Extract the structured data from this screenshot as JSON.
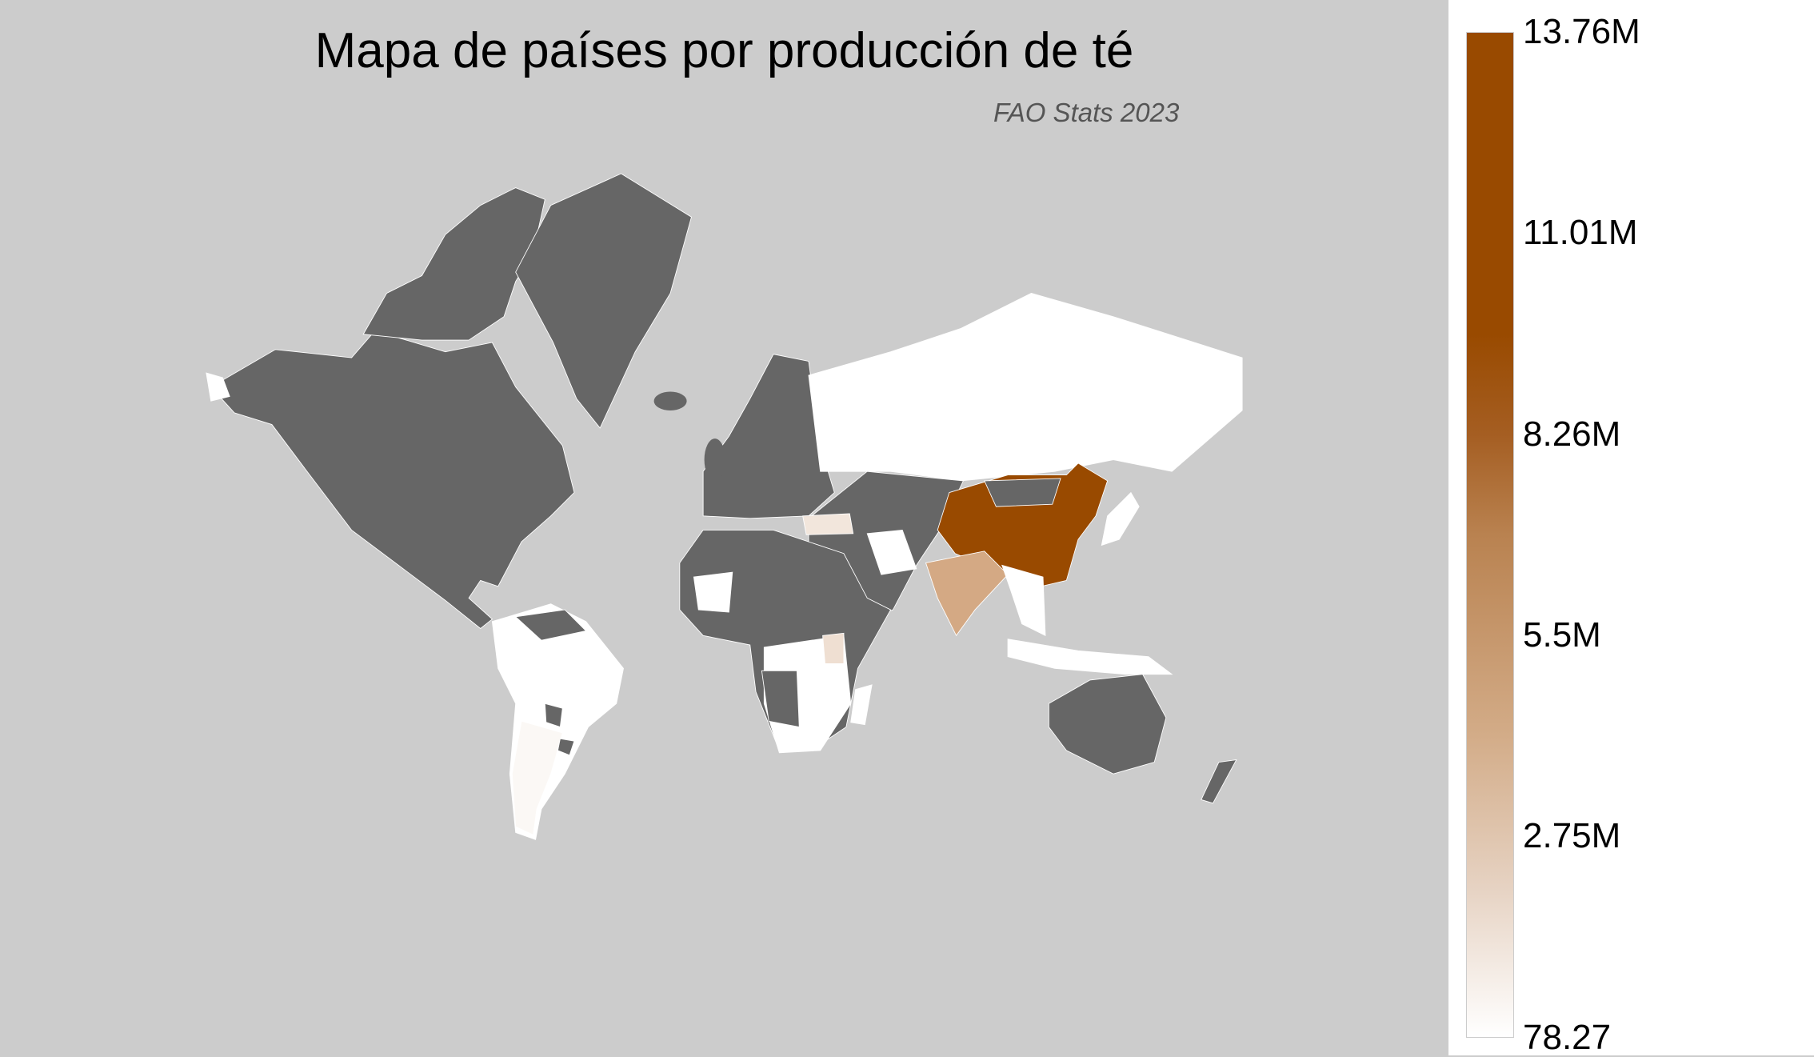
{
  "title": "Mapa de países por producción de té",
  "subtitle": "FAO Stats 2023",
  "chart_data": {
    "type": "choropleth",
    "title": "Mapa de países por producción de té",
    "subtitle": "FAO Stats 2023",
    "colorscale": {
      "min_label": "78.27",
      "max_label": "13.76M",
      "low_color": "#ffffff",
      "high_color": "#994a00",
      "no_data_color": "#666666",
      "background": "#cccccc"
    },
    "colorbar_ticks": [
      "13.76M",
      "11.01M",
      "8.26M",
      "5.5M",
      "2.75M",
      "78.27"
    ],
    "legend_position": "right",
    "regions": {
      "china": "#994a00",
      "india": "#d4a984",
      "turkey": "#f2e6dc",
      "kenya": "#efdfd2",
      "producer_low": "#ffffff",
      "producer_very_low": "#fbf8f5",
      "no_data": "#666666"
    }
  }
}
